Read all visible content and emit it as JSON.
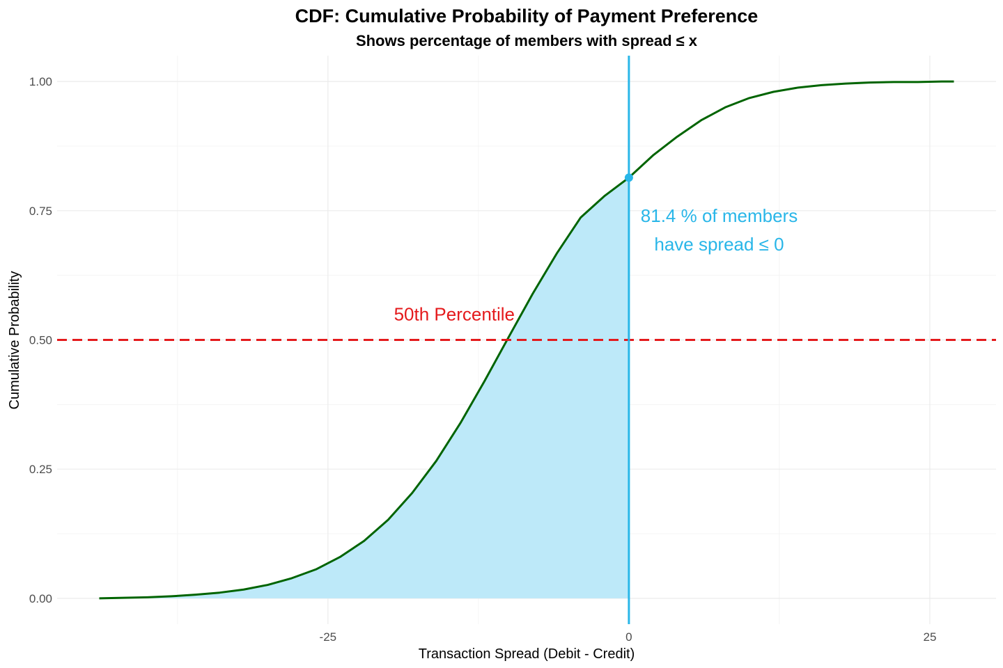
{
  "chart_data": {
    "type": "line",
    "title": "CDF: Cumulative Probability of Payment Preference",
    "subtitle": "Shows percentage of members with spread ≤ x",
    "xlabel": "Transaction Spread (Debit - Credit)",
    "ylabel": "Cumulative Probability",
    "xlim": [
      -47.5,
      30.5
    ],
    "ylim": [
      -0.05,
      1.05
    ],
    "x_ticks": [
      -25,
      0,
      25
    ],
    "x_tick_labels": [
      "-25",
      "0",
      "25"
    ],
    "x_minor_ticks": [
      -37.5,
      -12.5,
      12.5
    ],
    "y_ticks": [
      0,
      0.25,
      0.5,
      0.75,
      1.0
    ],
    "y_tick_labels": [
      "0.00",
      "0.25",
      "0.50",
      "0.75",
      "1.00"
    ],
    "y_minor_ticks": [
      0.125,
      0.375,
      0.625,
      0.875
    ],
    "grid": true,
    "legend": "none",
    "series": [
      {
        "x": [
          -44,
          -42,
          -40,
          -38,
          -36,
          -34,
          -32,
          -30,
          -28,
          -26,
          -24,
          -22,
          -20,
          -18,
          -16,
          -14,
          -12,
          -10,
          -8,
          -6,
          -4,
          -2,
          0,
          2,
          4,
          6,
          8,
          10,
          12,
          14,
          16,
          18,
          20,
          22,
          24,
          26,
          27
        ],
        "y": [
          0.0,
          0.001,
          0.002,
          0.004,
          0.007,
          0.011,
          0.017,
          0.026,
          0.039,
          0.056,
          0.08,
          0.111,
          0.152,
          0.204,
          0.266,
          0.339,
          0.42,
          0.505,
          0.589,
          0.667,
          0.737,
          0.779,
          0.814,
          0.857,
          0.893,
          0.925,
          0.95,
          0.968,
          0.98,
          0.988,
          0.993,
          0.996,
          0.998,
          0.999,
          0.999,
          1.0,
          1.0
        ],
        "color": "#006400"
      }
    ],
    "shaded_area": {
      "x_max": 0,
      "color": "#bde9f9"
    },
    "annotations": {
      "median_line": {
        "y": 0.5,
        "label": "50th Percentile",
        "color": "#e41a1c"
      },
      "threshold_line": {
        "x": 0,
        "color": "#29b6e8"
      },
      "threshold_point": {
        "x": 0,
        "y": 0.814,
        "color": "#29b6e8"
      },
      "threshold_label_line1": "81.4 % of members",
      "threshold_label_line2": "have spread ≤ 0"
    }
  }
}
